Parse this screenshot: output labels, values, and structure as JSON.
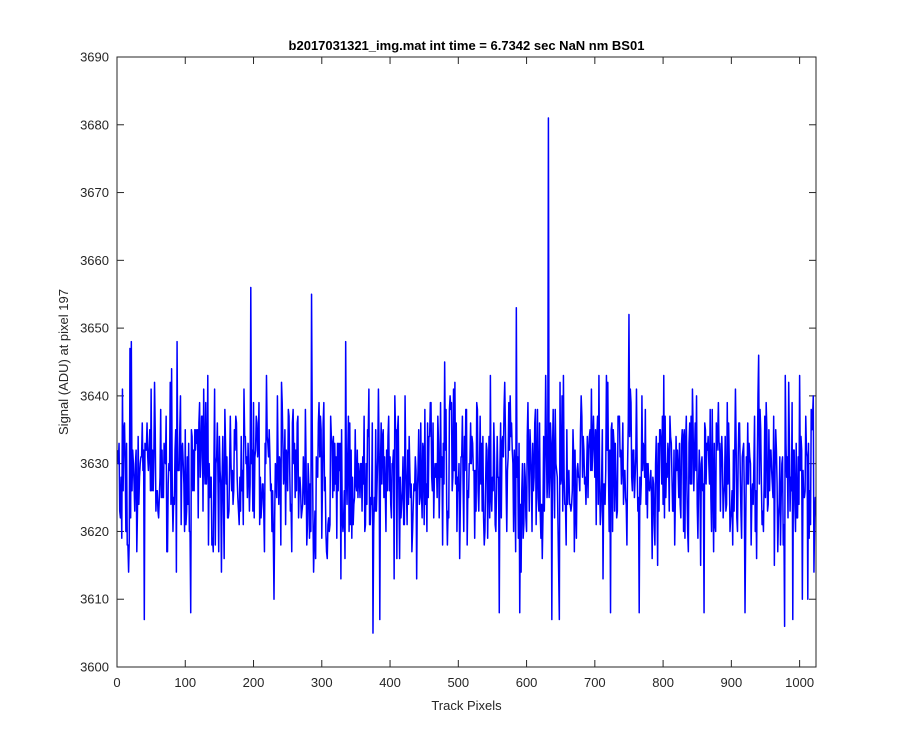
{
  "chart_data": {
    "type": "line",
    "title": "b2017031321_img.mat int time = 6.7342 sec  NaN nm BS01",
    "xlabel": "Track Pixels",
    "ylabel": "Signal (ADU) at pixel 197",
    "xlim": [
      0,
      1024
    ],
    "ylim": [
      3600,
      3690
    ],
    "xticks": [
      0,
      100,
      200,
      300,
      400,
      500,
      600,
      700,
      800,
      900,
      1000
    ],
    "yticks": [
      3600,
      3610,
      3620,
      3630,
      3640,
      3650,
      3660,
      3670,
      3680,
      3690
    ],
    "grid": false,
    "line_color": "#0000ff",
    "n_points": 1024,
    "baseline_mean": 3629,
    "series": [
      {
        "name": "",
        "x_start": 1,
        "x_step": 1,
        "notable_points": [
          {
            "x": 8,
            "y": 3641
          },
          {
            "x": 17,
            "y": 3614
          },
          {
            "x": 19,
            "y": 3647
          },
          {
            "x": 21,
            "y": 3648
          },
          {
            "x": 40,
            "y": 3607
          },
          {
            "x": 80,
            "y": 3644
          },
          {
            "x": 88,
            "y": 3648
          },
          {
            "x": 108,
            "y": 3608
          },
          {
            "x": 196,
            "y": 3656
          },
          {
            "x": 230,
            "y": 3610
          },
          {
            "x": 285,
            "y": 3655
          },
          {
            "x": 335,
            "y": 3648
          },
          {
            "x": 375,
            "y": 3605
          },
          {
            "x": 385,
            "y": 3607
          },
          {
            "x": 480,
            "y": 3645
          },
          {
            "x": 560,
            "y": 3608
          },
          {
            "x": 585,
            "y": 3653
          },
          {
            "x": 590,
            "y": 3608
          },
          {
            "x": 632,
            "y": 3681
          },
          {
            "x": 637,
            "y": 3607
          },
          {
            "x": 648,
            "y": 3607
          },
          {
            "x": 723,
            "y": 3608
          },
          {
            "x": 750,
            "y": 3652
          },
          {
            "x": 765,
            "y": 3608
          },
          {
            "x": 860,
            "y": 3608
          },
          {
            "x": 920,
            "y": 3608
          },
          {
            "x": 940,
            "y": 3646
          },
          {
            "x": 978,
            "y": 3606
          },
          {
            "x": 990,
            "y": 3607
          },
          {
            "x": 1004,
            "y": 3610
          },
          {
            "x": 1012,
            "y": 3610
          },
          {
            "x": 1017,
            "y": 3638
          },
          {
            "x": 1021,
            "y": 3614
          },
          {
            "x": 1024,
            "y": 3625
          }
        ]
      }
    ]
  }
}
